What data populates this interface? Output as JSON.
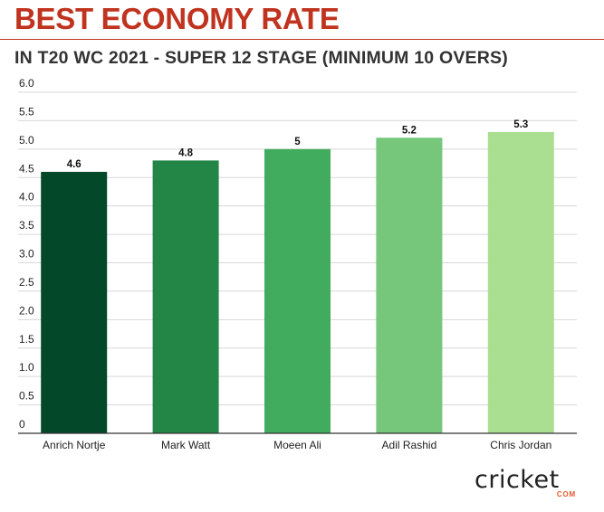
{
  "header": {
    "title": "BEST ECONOMY RATE",
    "subtitle": "IN T20 WC 2021 - SUPER 12 STAGE (MINIMUM 10 OVERS)"
  },
  "colors": {
    "title": "#c0331f",
    "bars": [
      "#04482a",
      "#238646",
      "#41ac5e",
      "#76c67b",
      "#aade90"
    ]
  },
  "logo": {
    "text": "cricket",
    "suffix": "COM"
  },
  "chart_data": {
    "type": "bar",
    "categories": [
      "Anrich Nortje",
      "Mark Watt",
      "Moeen Ali",
      "Adil Rashid",
      "Chris Jordan"
    ],
    "values": [
      4.6,
      4.8,
      5,
      5.2,
      5.3
    ],
    "data_labels": [
      "4.6",
      "4.8",
      "5",
      "5.2",
      "5.3"
    ],
    "yticks": [
      0,
      0.5,
      1.0,
      1.5,
      2.0,
      2.5,
      3.0,
      3.5,
      4.0,
      4.5,
      5.0,
      5.5,
      6.0
    ],
    "ytick_labels": [
      "0",
      "0.5",
      "1.0",
      "1.5",
      "2.0",
      "2.5",
      "3.0",
      "3.5",
      "4.0",
      "4.5",
      "5.0",
      "5.5",
      "6.0"
    ],
    "ylim": [
      0,
      6
    ],
    "grid": true,
    "legend": false
  }
}
